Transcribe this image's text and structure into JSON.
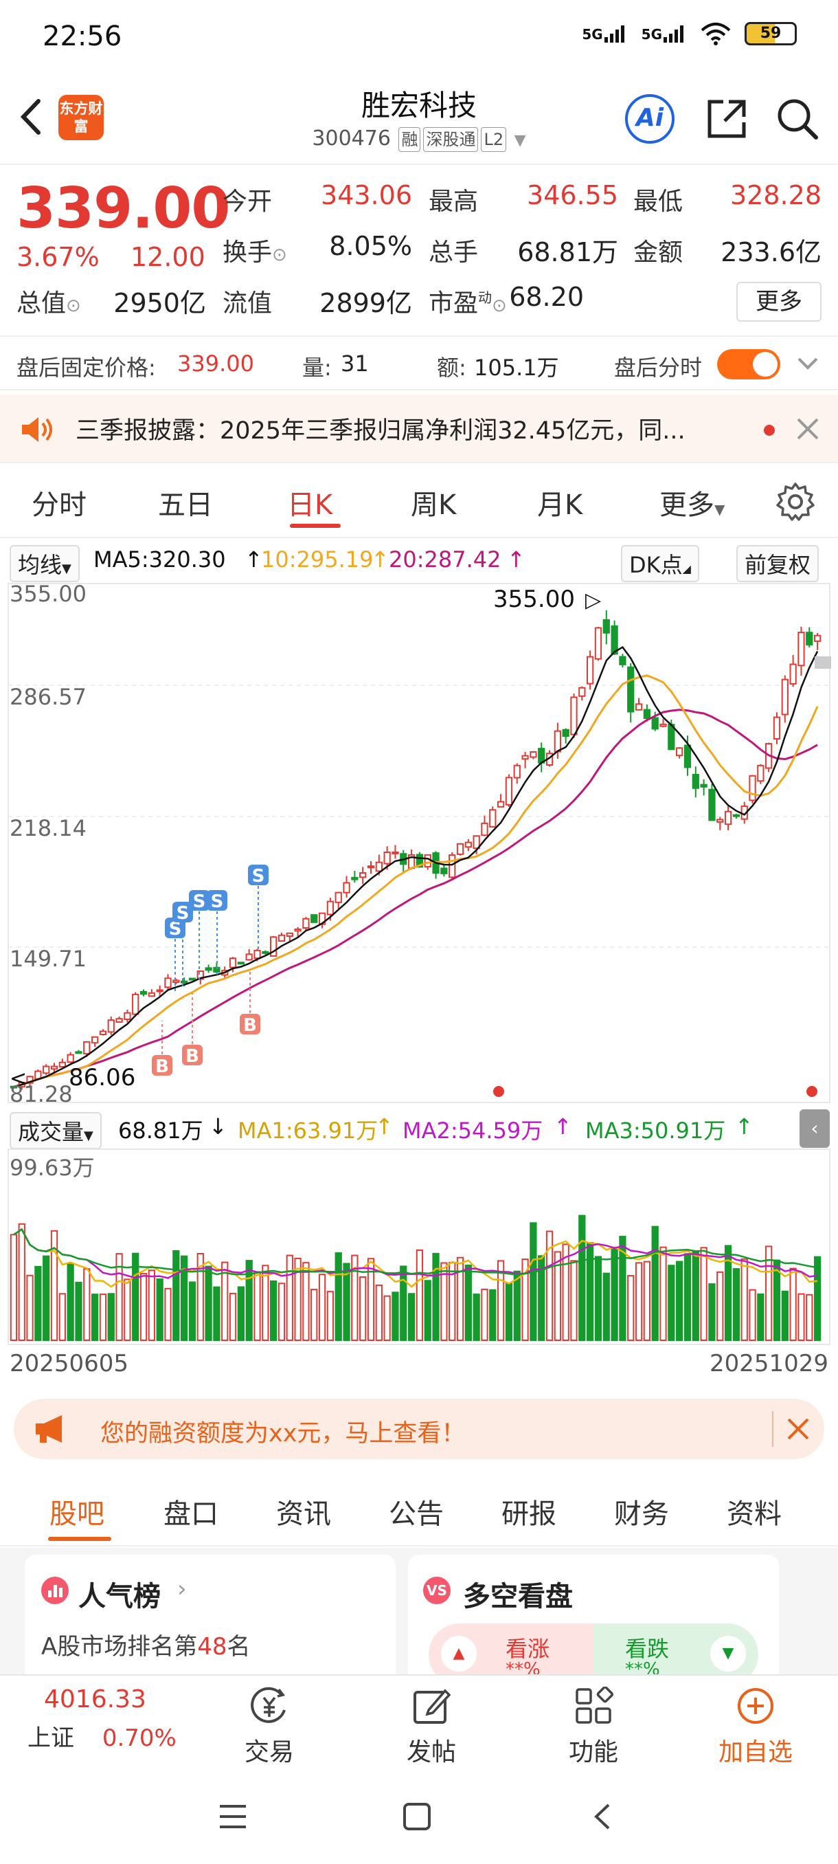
{
  "status_bar": {
    "time": "22:56",
    "signal1": "5G",
    "signal2": "5G",
    "battery": "59"
  },
  "header": {
    "logo_text": "东方财富",
    "title": "胜宏科技",
    "code": "300476",
    "tags": [
      "融",
      "深股通",
      "L2"
    ],
    "ai_label": "Ai"
  },
  "quote": {
    "price": "339.00",
    "change_pct": "3.67%",
    "change_abs": "12.00",
    "fields": [
      {
        "label": "今开",
        "value": "343.06",
        "color": "red"
      },
      {
        "label": "最高",
        "value": "346.55",
        "color": "red"
      },
      {
        "label": "最低",
        "value": "328.28",
        "color": "red"
      },
      {
        "label": "换手",
        "value": "8.05%",
        "color": "dark"
      },
      {
        "label": "总手",
        "value": "68.81万",
        "color": "dark"
      },
      {
        "label": "金额",
        "value": "233.6亿",
        "color": "dark"
      },
      {
        "label": "总值",
        "value": "2950亿",
        "color": "dark"
      },
      {
        "label": "流值",
        "value": "2899亿",
        "color": "dark"
      },
      {
        "label": "市盈",
        "value": "68.20",
        "color": "dark"
      }
    ],
    "pe_sup": "动",
    "more_label": "更多"
  },
  "after_hours": {
    "price_label": "盘后固定价格:",
    "price_value": "339.00",
    "vol_label": "量:",
    "vol_value": "31",
    "amt_label": "额:",
    "amt_value": "105.1万",
    "toggle_label": "盘后分时",
    "toggle_on": true
  },
  "notice": {
    "text": "三季报披露：2025年三季报归属净利润32.45亿元，同..."
  },
  "chart_tabs": [
    "分时",
    "五日",
    "日K",
    "周K",
    "月K",
    "更多"
  ],
  "active_chart_tab": "日K",
  "ma_bar": {
    "selector": "均线",
    "ma5": "MA5:320.30",
    "ma10": "10:295.19",
    "ma20": "20:287.42",
    "dk_label": "DK点",
    "adjust_label": "前复权"
  },
  "kline": {
    "y_labels": [
      "355.00",
      "286.57",
      "218.14",
      "149.71",
      "81.28"
    ],
    "high_mark": "355.00",
    "low_mark": "86.06",
    "signal_sell": "S",
    "signal_buy": "B"
  },
  "volume": {
    "selector": "成交量",
    "value": "68.81万",
    "ma1": "MA1:63.91万",
    "ma2": "MA2:54.59万",
    "ma3": "MA3:50.91万",
    "y_label": "99.63万"
  },
  "dates": {
    "start": "20250605",
    "end": "20251029"
  },
  "promo": {
    "text": "您的融资额度为xx元，马上查看！"
  },
  "bottom_tabs": [
    "股吧",
    "盘口",
    "资讯",
    "公告",
    "研报",
    "财务",
    "资料"
  ],
  "cards": {
    "left": {
      "title": "人气榜",
      "line1_prefix": "A股市场排名第",
      "line1_rank": "48",
      "line1_suffix": "名"
    },
    "right": {
      "title": "多空看盘",
      "up": "看涨",
      "down": "看跌",
      "up_pct": "**%",
      "down_pct": "**%"
    }
  },
  "index": {
    "value": "4016.33",
    "name": "上证",
    "pct": "0.70%"
  },
  "nav": [
    "交易",
    "发帖",
    "功能",
    "加自选"
  ],
  "colors": {
    "up": "#e23a32",
    "down": "#159b2d",
    "accent": "#e8621a",
    "ma5": "#111111",
    "ma10": "#f0a820",
    "ma20": "#c0177a"
  }
}
